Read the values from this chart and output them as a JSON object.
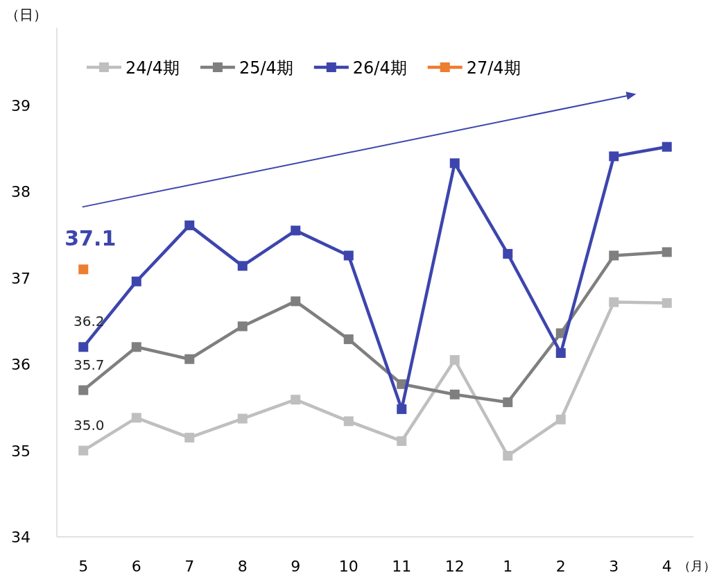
{
  "chart_data": {
    "type": "line",
    "ylabel": "（日）",
    "xlabel": "（月）",
    "categories": [
      "5",
      "6",
      "7",
      "8",
      "9",
      "10",
      "11",
      "12",
      "1",
      "2",
      "3",
      "4"
    ],
    "series": [
      {
        "name": "24/4期",
        "color": "#bfbfbf",
        "values": [
          35.0,
          35.38,
          35.15,
          35.37,
          35.59,
          35.34,
          35.11,
          36.05,
          34.94,
          35.36,
          36.72,
          36.71
        ],
        "value_labels": [
          "35.0",
          null,
          null,
          null,
          null,
          null,
          null,
          null,
          null,
          null,
          null,
          null
        ]
      },
      {
        "name": "25/4期",
        "color": "#7f7f7f",
        "values": [
          35.7,
          36.2,
          36.06,
          36.44,
          36.73,
          36.29,
          35.77,
          35.65,
          35.56,
          36.36,
          37.26,
          37.3
        ],
        "value_labels": [
          "35.7",
          null,
          null,
          null,
          null,
          null,
          null,
          null,
          null,
          null,
          null,
          null
        ]
      },
      {
        "name": "26/4期",
        "color": "#3d45ad",
        "values": [
          36.2,
          36.96,
          37.61,
          37.14,
          37.55,
          37.26,
          35.48,
          38.33,
          37.28,
          36.13,
          38.41,
          38.52
        ],
        "value_labels": [
          "36.2",
          null,
          null,
          null,
          null,
          null,
          null,
          null,
          null,
          null,
          null,
          null
        ]
      },
      {
        "name": "27/4期",
        "color": "#ed7d31",
        "values": [
          37.1,
          null,
          null,
          null,
          null,
          null,
          null,
          null,
          null,
          null,
          null,
          null
        ],
        "value_labels": [
          "37.1",
          null,
          null,
          null,
          null,
          null,
          null,
          null,
          null,
          null,
          null,
          null
        ]
      }
    ],
    "ylim": [
      34,
      39.9
    ],
    "yticks": [
      34,
      35,
      36,
      37,
      38,
      39
    ],
    "grid": false,
    "legend": "top",
    "marker": "square",
    "line_style": "solid"
  }
}
